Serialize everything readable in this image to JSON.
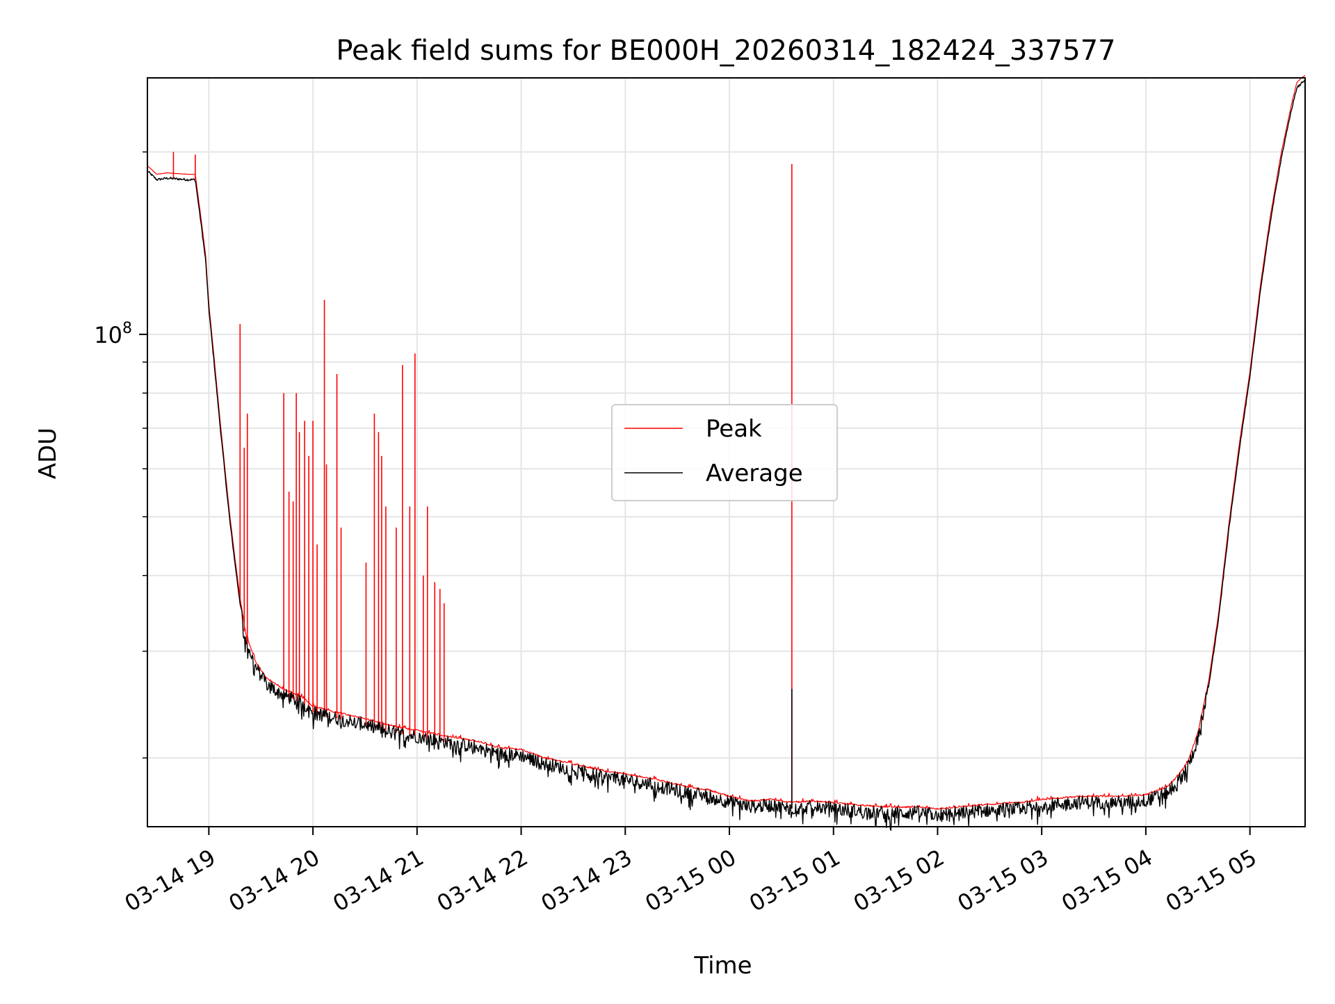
{
  "chart_data": {
    "type": "line",
    "title": "Peak field sums for BE000H_20260314_182424_337577",
    "xlabel": "Time",
    "ylabel": "ADU",
    "yscale": "log",
    "ylim": [
      15400000,
      265000000
    ],
    "x_hours_range": [
      18.41,
      29.53
    ],
    "x_ticks": [
      {
        "label": "03-14 19",
        "hour": 19
      },
      {
        "label": "03-14 20",
        "hour": 20
      },
      {
        "label": "03-14 21",
        "hour": 21
      },
      {
        "label": "03-14 22",
        "hour": 22
      },
      {
        "label": "03-14 23",
        "hour": 23
      },
      {
        "label": "03-15 00",
        "hour": 24
      },
      {
        "label": "03-15 01",
        "hour": 25
      },
      {
        "label": "03-15 02",
        "hour": 26
      },
      {
        "label": "03-15 03",
        "hour": 27
      },
      {
        "label": "03-15 04",
        "hour": 28
      },
      {
        "label": "03-15 05",
        "hour": 29
      }
    ],
    "y_major_ticks": [
      {
        "value": 100000000,
        "base": "10",
        "exponent": "8"
      }
    ],
    "y_minor_ticks": [
      20000000,
      30000000,
      40000000,
      50000000,
      60000000,
      70000000,
      80000000,
      90000000,
      200000000
    ],
    "grid": true,
    "legend": {
      "position": "center",
      "entries": [
        "Peak",
        "Average"
      ]
    },
    "colors": {
      "peak": "#ff0000",
      "average": "#000000",
      "grid": "#e5e5e5"
    },
    "series": [
      {
        "name": "Average",
        "key": "average",
        "x": [
          18.41,
          18.5,
          18.6,
          18.8,
          18.87,
          18.93,
          18.97,
          19.0,
          19.05,
          19.1,
          19.15,
          19.2,
          19.25,
          19.3,
          19.35,
          19.45,
          19.55,
          19.7,
          19.9,
          20.0,
          20.2,
          20.5,
          20.8,
          21.0,
          21.3,
          21.6,
          21.8,
          22.0,
          22.2,
          22.5,
          22.8,
          23.0,
          23.3,
          23.6,
          23.8,
          24.0,
          24.2,
          24.4,
          24.6,
          24.8,
          25.0,
          25.3,
          25.6,
          25.8,
          26.0,
          26.4,
          26.8,
          27.0,
          27.4,
          27.8,
          28.0,
          28.2,
          28.3,
          28.4,
          28.5,
          28.6,
          28.7,
          28.8,
          28.9,
          29.0,
          29.1,
          29.2,
          29.3,
          29.4,
          29.45,
          29.5,
          29.53
        ],
        "y": [
          186000000,
          180000000,
          181000000,
          180000000,
          180000000,
          150000000,
          132000000,
          110000000,
          90000000,
          73000000,
          60000000,
          49500000,
          42000000,
          36000000,
          31500000,
          28200000,
          26500000,
          25500000,
          24600000,
          23800000,
          23300000,
          22700000,
          22000000,
          21700000,
          21200000,
          20800000,
          20300000,
          20200000,
          19600000,
          19100000,
          18600000,
          18400000,
          18000000,
          17500000,
          17300000,
          16900000,
          16600000,
          16700000,
          16500000,
          16600000,
          16500000,
          16300000,
          16200000,
          16250000,
          16100000,
          16350000,
          16500000,
          16700000,
          16900000,
          16900000,
          17000000,
          17500000,
          18200000,
          19200000,
          21500000,
          26000000,
          34000000,
          48000000,
          65000000,
          85000000,
          118000000,
          155000000,
          195000000,
          235000000,
          255000000,
          260000000,
          262000000
        ]
      },
      {
        "name": "Peak",
        "key": "peak",
        "offset": 1.02,
        "spikes": [
          {
            "x": 18.66,
            "y": 200000000
          },
          {
            "x": 18.87,
            "y": 198000000
          },
          {
            "x": 19.3,
            "y": 104000000
          },
          {
            "x": 19.34,
            "y": 65000000
          },
          {
            "x": 19.37,
            "y": 74000000
          },
          {
            "x": 19.72,
            "y": 80000000
          },
          {
            "x": 19.77,
            "y": 55000000
          },
          {
            "x": 19.81,
            "y": 53000000
          },
          {
            "x": 19.84,
            "y": 80000000
          },
          {
            "x": 19.87,
            "y": 69000000
          },
          {
            "x": 19.92,
            "y": 72000000
          },
          {
            "x": 19.96,
            "y": 63000000
          },
          {
            "x": 20.0,
            "y": 72000000
          },
          {
            "x": 20.04,
            "y": 45000000
          },
          {
            "x": 20.11,
            "y": 114000000
          },
          {
            "x": 20.13,
            "y": 61000000
          },
          {
            "x": 20.23,
            "y": 86000000
          },
          {
            "x": 20.27,
            "y": 48000000
          },
          {
            "x": 20.51,
            "y": 42000000
          },
          {
            "x": 20.59,
            "y": 74000000
          },
          {
            "x": 20.63,
            "y": 69000000
          },
          {
            "x": 20.66,
            "y": 63000000
          },
          {
            "x": 20.7,
            "y": 52000000
          },
          {
            "x": 20.8,
            "y": 48000000
          },
          {
            "x": 20.86,
            "y": 89000000
          },
          {
            "x": 20.93,
            "y": 52000000
          },
          {
            "x": 20.98,
            "y": 93000000
          },
          {
            "x": 21.06,
            "y": 40000000
          },
          {
            "x": 21.1,
            "y": 52000000
          },
          {
            "x": 21.17,
            "y": 39000000
          },
          {
            "x": 21.22,
            "y": 38000000
          },
          {
            "x": 21.26,
            "y": 36000000
          },
          {
            "x": 24.6,
            "y": 191000000
          }
        ]
      }
    ]
  }
}
